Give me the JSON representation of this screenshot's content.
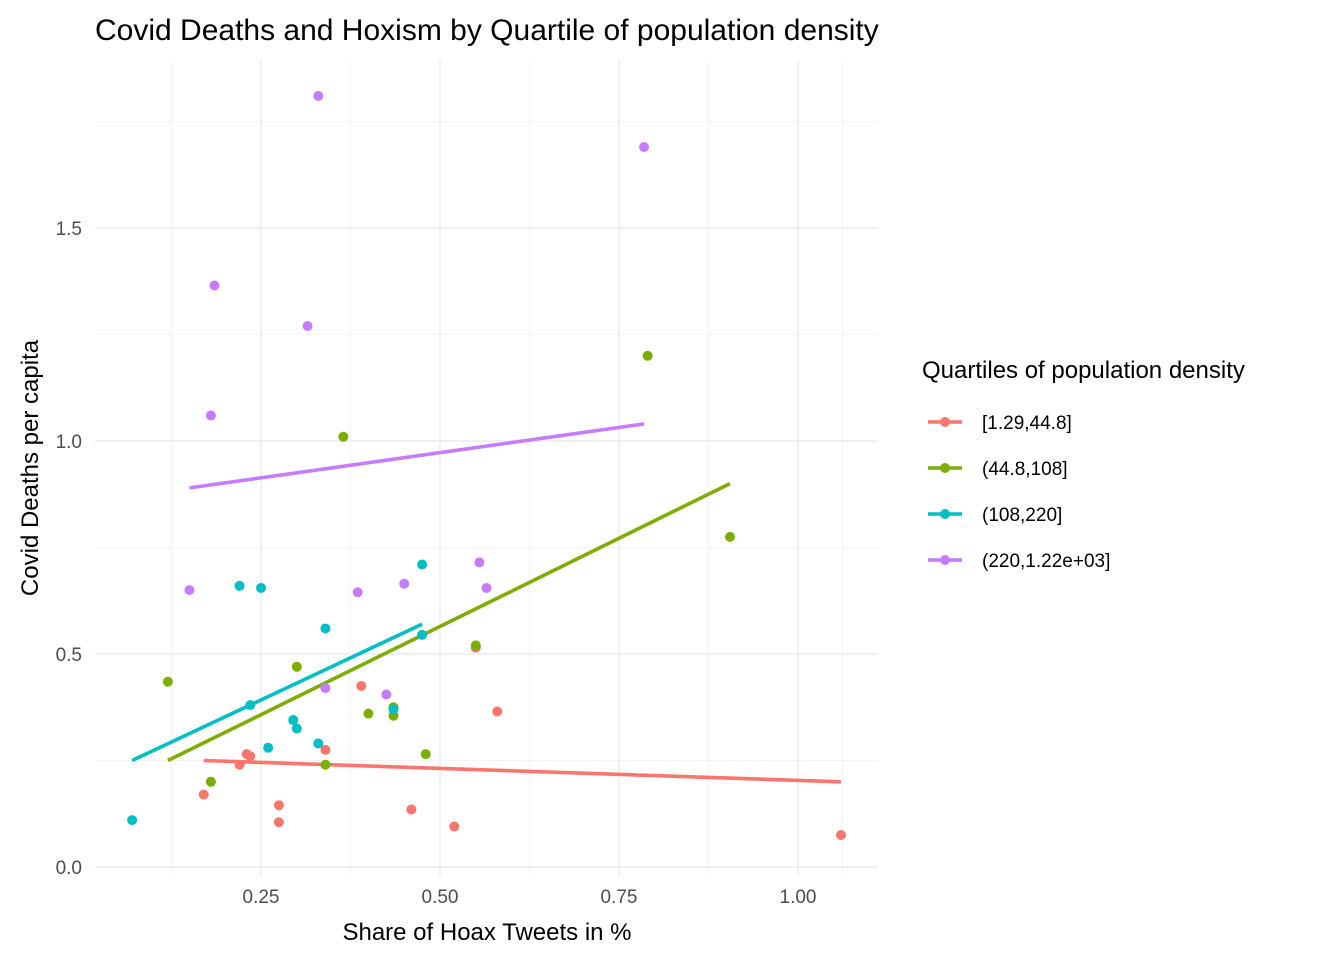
{
  "chart_data": {
    "type": "scatter",
    "title": "Covid Deaths and Hoxism by Quartile of population density",
    "xlabel": "Share of Hoax Tweets in %",
    "ylabel": "Covid Deaths per capita",
    "xlim": [
      0.0,
      1.1
    ],
    "ylim": [
      0.0,
      1.84
    ],
    "x_ticks": [
      "0.25",
      "0.50",
      "0.75",
      "1.00"
    ],
    "y_ticks": [
      "0.0",
      "0.5",
      "1.0",
      "1.5"
    ],
    "grid": true,
    "legend_placement": "right",
    "legend_title": "Quartiles of population density",
    "series": [
      {
        "name": "[1.29,44.8]",
        "color": "#F8766D",
        "points": [
          [
            0.17,
            0.17
          ],
          [
            0.22,
            0.24
          ],
          [
            0.23,
            0.265
          ],
          [
            0.235,
            0.26
          ],
          [
            0.275,
            0.145
          ],
          [
            0.275,
            0.105
          ],
          [
            0.34,
            0.275
          ],
          [
            0.39,
            0.425
          ],
          [
            0.46,
            0.135
          ],
          [
            0.52,
            0.095
          ],
          [
            0.55,
            0.52
          ],
          [
            0.55,
            0.515
          ],
          [
            0.58,
            0.365
          ],
          [
            1.06,
            0.075
          ]
        ],
        "trend": [
          [
            0.17,
            0.25
          ],
          [
            1.06,
            0.2
          ]
        ]
      },
      {
        "name": "(44.8,108]",
        "color": "#7CAE00",
        "points": [
          [
            0.12,
            0.435
          ],
          [
            0.18,
            0.2
          ],
          [
            0.3,
            0.47
          ],
          [
            0.34,
            0.24
          ],
          [
            0.365,
            1.01
          ],
          [
            0.4,
            0.36
          ],
          [
            0.435,
            0.375
          ],
          [
            0.435,
            0.355
          ],
          [
            0.48,
            0.265
          ],
          [
            0.55,
            0.52
          ],
          [
            0.79,
            1.2
          ],
          [
            0.905,
            0.775
          ]
        ],
        "trend": [
          [
            0.12,
            0.25
          ],
          [
            0.905,
            0.9
          ]
        ]
      },
      {
        "name": "(108,220]",
        "color": "#00BFC4",
        "points": [
          [
            0.07,
            0.11
          ],
          [
            0.22,
            0.66
          ],
          [
            0.235,
            0.38
          ],
          [
            0.25,
            0.655
          ],
          [
            0.26,
            0.28
          ],
          [
            0.295,
            0.345
          ],
          [
            0.3,
            0.325
          ],
          [
            0.33,
            0.29
          ],
          [
            0.34,
            0.56
          ],
          [
            0.435,
            0.37
          ],
          [
            0.475,
            0.71
          ],
          [
            0.475,
            0.545
          ]
        ],
        "trend": [
          [
            0.07,
            0.25
          ],
          [
            0.475,
            0.57
          ]
        ]
      },
      {
        "name": "(220,1.22e+03]",
        "color": "#C77CFF",
        "points": [
          [
            0.15,
            0.65
          ],
          [
            0.18,
            1.06
          ],
          [
            0.185,
            1.365
          ],
          [
            0.315,
            1.27
          ],
          [
            0.33,
            1.81
          ],
          [
            0.34,
            0.42
          ],
          [
            0.385,
            0.645
          ],
          [
            0.425,
            0.405
          ],
          [
            0.45,
            0.665
          ],
          [
            0.555,
            0.715
          ],
          [
            0.565,
            0.655
          ],
          [
            0.785,
            1.69
          ]
        ],
        "trend": [
          [
            0.15,
            0.89
          ],
          [
            0.785,
            1.04
          ]
        ]
      }
    ]
  }
}
